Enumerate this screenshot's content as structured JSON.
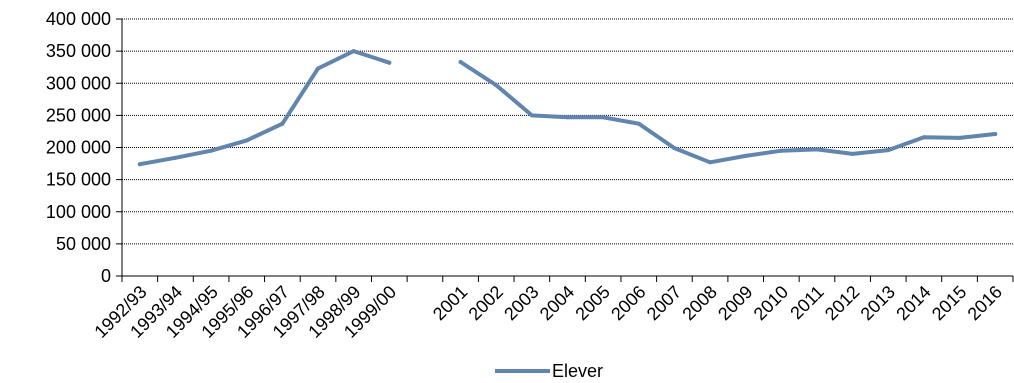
{
  "chart_data": {
    "type": "line",
    "categories": [
      "1992/93",
      "1993/94",
      "1994/95",
      "1995/96",
      "1996/97",
      "1997/98",
      "1998/99",
      "1999/00",
      "",
      "2001",
      "2002",
      "2003",
      "2004",
      "2005",
      "2006",
      "2007",
      "2008",
      "2009",
      "2010",
      "2011",
      "2012",
      "2013",
      "2014",
      "2015",
      "2016"
    ],
    "series": [
      {
        "name": "Elever",
        "color": "#6185ad",
        "values": [
          174000,
          184000,
          195000,
          211000,
          237000,
          323000,
          350000,
          332000,
          null,
          333000,
          297000,
          250000,
          247000,
          247000,
          237000,
          199000,
          177000,
          187000,
          195000,
          197000,
          190000,
          196000,
          216000,
          215000,
          221000
        ]
      }
    ],
    "ylim": [
      0,
      400000
    ],
    "yticks": [
      0,
      50000,
      100000,
      150000,
      200000,
      250000,
      300000,
      350000,
      400000
    ],
    "ytick_labels": [
      "0",
      "50 000",
      "100 000",
      "150 000",
      "200 000",
      "250 000",
      "300 000",
      "350 000",
      "400 000"
    ],
    "grid": true,
    "legend_position": "bottom"
  }
}
